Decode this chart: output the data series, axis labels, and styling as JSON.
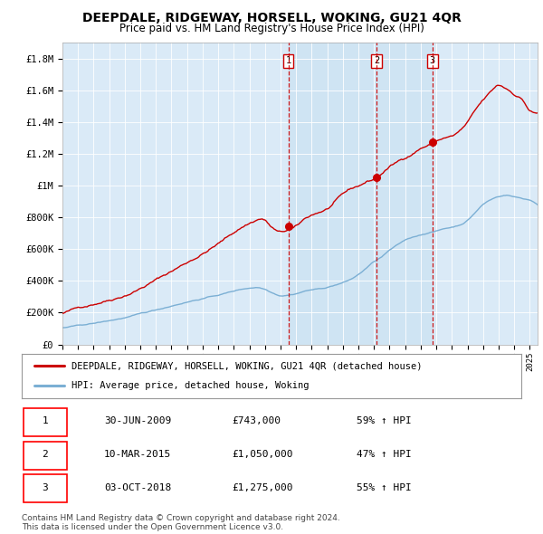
{
  "title": "DEEPDALE, RIDGEWAY, HORSELL, WOKING, GU21 4QR",
  "subtitle": "Price paid vs. HM Land Registry's House Price Index (HPI)",
  "title_fontsize": 10,
  "subtitle_fontsize": 8.5,
  "bg_color": "#daeaf7",
  "fig_bg": "#ffffff",
  "ylim": [
    0,
    1900000
  ],
  "yticks": [
    0,
    200000,
    400000,
    600000,
    800000,
    1000000,
    1200000,
    1400000,
    1600000,
    1800000
  ],
  "ytick_labels": [
    "£0",
    "£200K",
    "£400K",
    "£600K",
    "£800K",
    "£1M",
    "£1.2M",
    "£1.4M",
    "£1.6M",
    "£1.8M"
  ],
  "red_color": "#cc0000",
  "blue_color": "#7bafd4",
  "vline_color": "#cc0000",
  "shade_color": "#c5dff0",
  "sale_points": [
    {
      "year": 2009.5,
      "price": 743000,
      "label": "1"
    },
    {
      "year": 2015.17,
      "price": 1050000,
      "label": "2"
    },
    {
      "year": 2018.75,
      "price": 1275000,
      "label": "3"
    }
  ],
  "table_data": [
    [
      "1",
      "30-JUN-2009",
      "£743,000",
      "59% ↑ HPI"
    ],
    [
      "2",
      "10-MAR-2015",
      "£1,050,000",
      "47% ↑ HPI"
    ],
    [
      "3",
      "03-OCT-2018",
      "£1,275,000",
      "55% ↑ HPI"
    ]
  ],
  "legend_line1": "DEEPDALE, RIDGEWAY, HORSELL, WOKING, GU21 4QR (detached house)",
  "legend_line2": "HPI: Average price, detached house, Woking",
  "footer1": "Contains HM Land Registry data © Crown copyright and database right 2024.",
  "footer2": "This data is licensed under the Open Government Licence v3.0.",
  "xlim_start": 1995,
  "xlim_end": 2025.5
}
